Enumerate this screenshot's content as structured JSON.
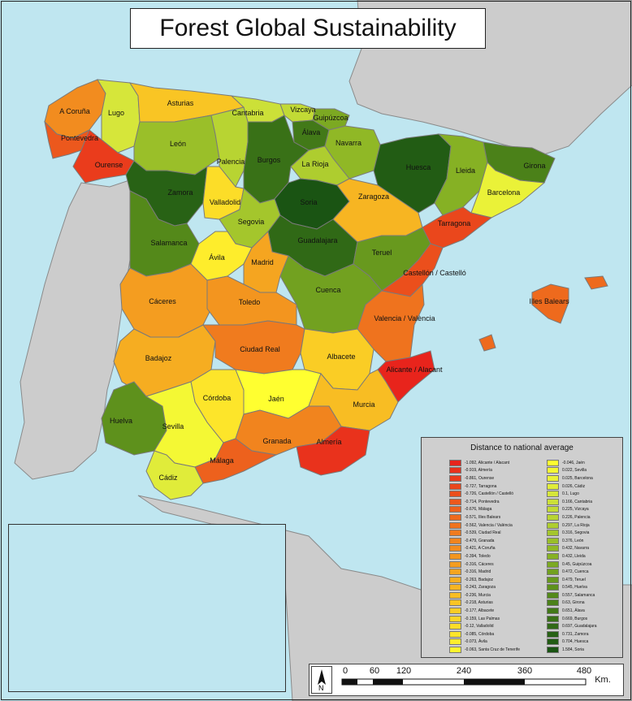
{
  "title": "Forest Global Sustainability",
  "colors": {
    "sea": "#bfe6f0",
    "land": "#cccccc",
    "border": "#7a7a7a"
  },
  "provinces": [
    {
      "name": "A Coruña",
      "value": -0.421
    },
    {
      "name": "Lugo",
      "value": 0.1
    },
    {
      "name": "Asturias",
      "value": -0.218
    },
    {
      "name": "Cantabria",
      "value": 0.166
    },
    {
      "name": "Vizcaya",
      "value": 0.225
    },
    {
      "name": "Guipúzcoa",
      "value": 0.45
    },
    {
      "name": "Álava",
      "value": 0.651
    },
    {
      "name": "Navarra",
      "value": 0.432
    },
    {
      "name": "Pontevedra",
      "value": -0.714
    },
    {
      "name": "Ourense",
      "value": -0.861
    },
    {
      "name": "León",
      "value": 0.376
    },
    {
      "name": "Palencia",
      "value": 0.226
    },
    {
      "name": "Burgos",
      "value": 0.669
    },
    {
      "name": "La Rioja",
      "value": 0.297
    },
    {
      "name": "Huesca",
      "value": 0.704
    },
    {
      "name": "Lleida",
      "value": 0.432
    },
    {
      "name": "Girona",
      "value": 0.63
    },
    {
      "name": "Barcelona",
      "value": 0.025
    },
    {
      "name": "Zamora",
      "value": 0.731
    },
    {
      "name": "Valladolid",
      "value": -0.12
    },
    {
      "name": "Soria",
      "value": 1.584
    },
    {
      "name": "Zaragoza",
      "value": -0.243
    },
    {
      "name": "Tarragona",
      "value": -0.727
    },
    {
      "name": "Segovia",
      "value": 0.316
    },
    {
      "name": "Salamanca",
      "value": 0.557
    },
    {
      "name": "Guadalajara",
      "value": 0.697
    },
    {
      "name": "Teruel",
      "value": 0.479
    },
    {
      "name": "Ávila",
      "value": -0.073
    },
    {
      "name": "Madrid",
      "value": -0.316
    },
    {
      "name": "Castellón / Castelló",
      "value": -0.726
    },
    {
      "name": "Cáceres",
      "value": -0.316
    },
    {
      "name": "Toledo",
      "value": -0.394
    },
    {
      "name": "Cuenca",
      "value": 0.472
    },
    {
      "name": "Illes Balears",
      "value": -0.571
    },
    {
      "name": "Valencia / València",
      "value": -0.562
    },
    {
      "name": "Badajoz",
      "value": -0.263
    },
    {
      "name": "Ciudad Real",
      "value": -0.539
    },
    {
      "name": "Albacete",
      "value": -0.177
    },
    {
      "name": "Alicante / Alacant",
      "value": -1.092
    },
    {
      "name": "Córdoba",
      "value": -0.085
    },
    {
      "name": "Jaén",
      "value": -0.046
    },
    {
      "name": "Murcia",
      "value": -0.236
    },
    {
      "name": "Huelva",
      "value": 0.545
    },
    {
      "name": "Sevilla",
      "value": 0.022
    },
    {
      "name": "Granada",
      "value": -0.479
    },
    {
      "name": "Almería",
      "value": -0.919
    },
    {
      "name": "Málaga",
      "value": -0.676
    },
    {
      "name": "Cádiz",
      "value": 0.026
    },
    {
      "name": "Santa Cruz de Tenerife",
      "value": -0.063
    },
    {
      "name": "Las Palmas",
      "value": -0.159
    }
  ],
  "legend": {
    "title": "Distance to national average",
    "column1": [
      {
        "label": "-1.092, Alicante / Alacant",
        "color": "#e8241c"
      },
      {
        "label": "-0.919, Almería",
        "color": "#e9321c"
      },
      {
        "label": "-0.861, Ourense",
        "color": "#ea3c1c"
      },
      {
        "label": "-0.727, Tarragona",
        "color": "#ea471c"
      },
      {
        "label": "-0.726, Castellón / Castelló",
        "color": "#eb4f1c"
      },
      {
        "label": "-0.714, Pontevedra",
        "color": "#ec581d"
      },
      {
        "label": "-0.676, Málaga",
        "color": "#ed611d"
      },
      {
        "label": "-0.571, Illes Balears",
        "color": "#ee6a1d"
      },
      {
        "label": "-0.562, Valencia / València",
        "color": "#ef731e"
      },
      {
        "label": "-0.539, Ciudad Real",
        "color": "#f07b1e"
      },
      {
        "label": "-0.479, Granada",
        "color": "#f1841e"
      },
      {
        "label": "-0.421, A Coruña",
        "color": "#f28c1f"
      },
      {
        "label": "-0.394, Toledo",
        "color": "#f3951f"
      },
      {
        "label": "-0.316, Cáceres",
        "color": "#f49d20"
      },
      {
        "label": "-0.316, Madrid",
        "color": "#f5a520"
      },
      {
        "label": "-0.263, Badajoz",
        "color": "#f6ad21"
      },
      {
        "label": "-0.243, Zaragoza",
        "color": "#f7b522"
      },
      {
        "label": "-0.236, Murcia",
        "color": "#f8bd23"
      },
      {
        "label": "-0.218, Asturias",
        "color": "#f9c524"
      },
      {
        "label": "-0.177, Albacete",
        "color": "#facd25"
      },
      {
        "label": "-0.159, Las Palmas",
        "color": "#fbd527"
      },
      {
        "label": "-0.12, Valladolid",
        "color": "#fcdd28"
      },
      {
        "label": "-0.085, Córdoba",
        "color": "#fde52a"
      },
      {
        "label": "-0.073, Ávila",
        "color": "#feed2c"
      },
      {
        "label": "-0.063, Santa Cruz de Tenerife",
        "color": "#fff52e"
      }
    ],
    "column2": [
      {
        "label": "-0.046, Jaén",
        "color": "#ffff30"
      },
      {
        "label": "0.022, Sevilla",
        "color": "#f4f834"
      },
      {
        "label": "0.025, Barcelona",
        "color": "#eaf238"
      },
      {
        "label": "0.026, Cádiz",
        "color": "#e0ec3a"
      },
      {
        "label": "0.1, Lugo",
        "color": "#d6e63a"
      },
      {
        "label": "0.166, Cantabria",
        "color": "#cce038"
      },
      {
        "label": "0.225, Vizcaya",
        "color": "#c2da35"
      },
      {
        "label": "0.226, Palencia",
        "color": "#b8d432"
      },
      {
        "label": "0.297, La Rioja",
        "color": "#aecd2f"
      },
      {
        "label": "0.316, Segovia",
        "color": "#a4c62c"
      },
      {
        "label": "0.376, León",
        "color": "#9abf29"
      },
      {
        "label": "0.432, Navarra",
        "color": "#90b826"
      },
      {
        "label": "0.432, Lleida",
        "color": "#86b124"
      },
      {
        "label": "0.45, Guipúzcoa",
        "color": "#7ca922"
      },
      {
        "label": "0.472, Cuenca",
        "color": "#72a120"
      },
      {
        "label": "0.479, Teruel",
        "color": "#68991e"
      },
      {
        "label": "0.545, Huelva",
        "color": "#5e911c"
      },
      {
        "label": "0.557, Salamanca",
        "color": "#54891a"
      },
      {
        "label": "0.63, Girona",
        "color": "#4b8119"
      },
      {
        "label": "0.651, Álava",
        "color": "#427918"
      },
      {
        "label": "0.669, Burgos",
        "color": "#397117"
      },
      {
        "label": "0.697, Guadalajara",
        "color": "#306916"
      },
      {
        "label": "0.731, Zamora",
        "color": "#286215"
      },
      {
        "label": "0.704, Huesca",
        "color": "#225c14"
      },
      {
        "label": "1.584, Soria",
        "color": "#1a5413"
      }
    ]
  },
  "scale": {
    "ticks": [
      "0",
      "60",
      "120",
      "240",
      "360",
      "480"
    ],
    "unit": "Km.",
    "north": "N"
  }
}
